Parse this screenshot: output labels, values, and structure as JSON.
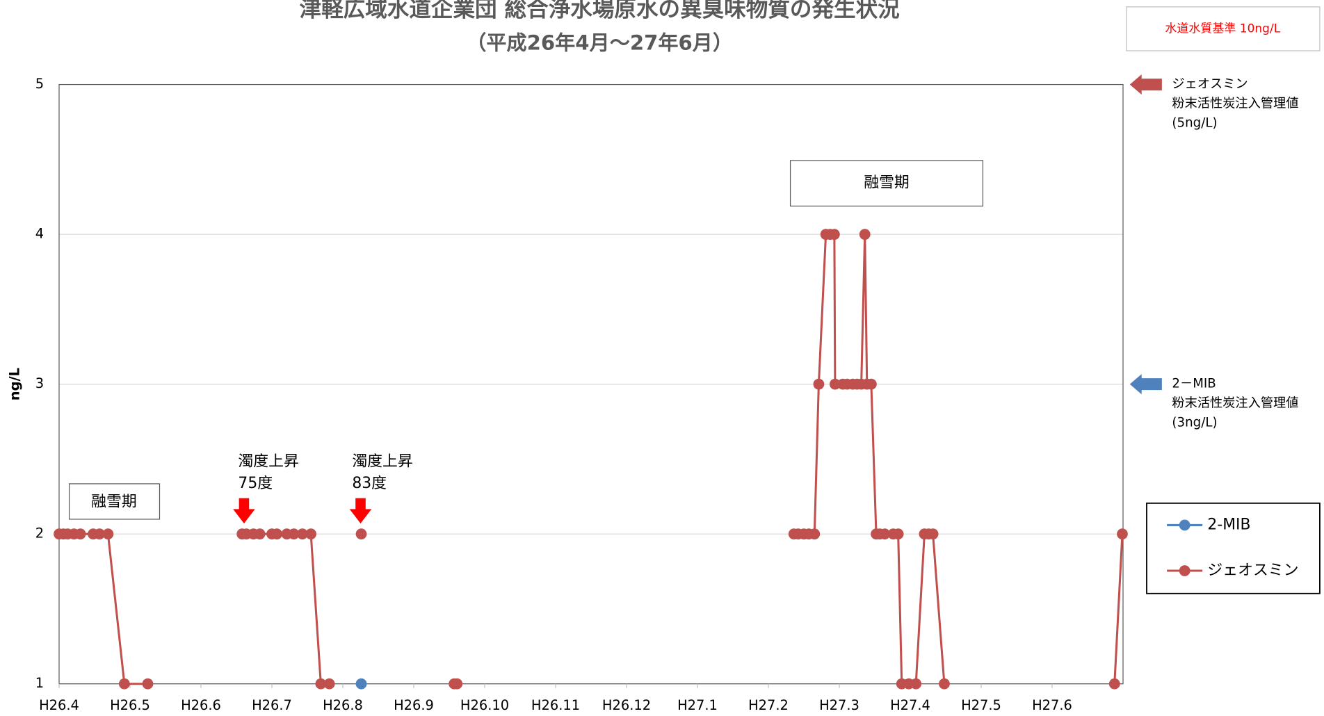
{
  "chart_data": {
    "type": "line",
    "title": "津軽広域水道企業団 総合浄水場原水の異臭味物質の発生状況",
    "subtitle": "（平成26年4月～27年6月）",
    "y_label": "ng/L",
    "xlim": [
      0,
      15
    ],
    "xticks": [
      {
        "value": 0,
        "label": "H26.4"
      },
      {
        "value": 1,
        "label": "H26.5"
      },
      {
        "value": 2,
        "label": "H26.6"
      },
      {
        "value": 3,
        "label": "H26.7"
      },
      {
        "value": 4,
        "label": "H26.8"
      },
      {
        "value": 5,
        "label": "H26.9"
      },
      {
        "value": 6,
        "label": "H26.10"
      },
      {
        "value": 7,
        "label": "H26.11"
      },
      {
        "value": 8,
        "label": "H26.12"
      },
      {
        "value": 9,
        "label": "H27.1"
      },
      {
        "value": 10,
        "label": "H27.2"
      },
      {
        "value": 11,
        "label": "H27.3"
      },
      {
        "value": 12,
        "label": "H27.4"
      },
      {
        "value": 13,
        "label": "H27.5"
      },
      {
        "value": 14,
        "label": "H27.6"
      }
    ],
    "ylim": [
      1,
      5
    ],
    "yticks": [
      1,
      2,
      3,
      4,
      5
    ],
    "grid": true,
    "series": [
      {
        "name": "2-MIB",
        "color": "#4f81bd",
        "x": [
          4.26
        ],
        "values": [
          1
        ]
      },
      {
        "name": "ジェオスミン",
        "color": "#c0504d",
        "x": [
          0,
          0.06,
          0.12,
          0.21,
          0.3,
          0.48,
          0.57,
          0.69,
          0.92,
          1.25,
          null,
          2.58,
          2.64,
          2.74,
          2.83,
          3.0,
          3.07,
          3.21,
          3.31,
          3.43,
          3.55,
          3.69,
          3.81,
          null,
          4.26,
          null,
          5.57,
          5.61,
          null,
          10.36,
          10.42,
          10.5,
          10.57,
          10.65,
          10.71,
          10.81,
          10.87,
          10.93,
          10.94,
          11.05,
          11.11,
          11.19,
          11.25,
          11.31,
          11.36,
          11.39,
          11.45,
          11.52,
          11.57,
          11.64,
          11.76,
          11.83,
          11.88,
          11.98,
          12.08,
          12.2,
          12.26,
          12.32,
          12.48,
          null,
          14.88,
          14.99
        ],
        "values": [
          2,
          2,
          2,
          2,
          2,
          2,
          2,
          2,
          1,
          1,
          null,
          2,
          2,
          2,
          2,
          2,
          2,
          2,
          2,
          2,
          2,
          1,
          1,
          null,
          2,
          null,
          1,
          1,
          null,
          2,
          2,
          2,
          2,
          2,
          3,
          4,
          4,
          4,
          3,
          3,
          3,
          3,
          3,
          3,
          4,
          3,
          3,
          2,
          2,
          2,
          2,
          2,
          1,
          1,
          1,
          2,
          2,
          2,
          1,
          null,
          1,
          2
        ]
      }
    ],
    "annotations": [
      {
        "lines": [
          "融雪期"
        ]
      },
      {
        "lines": [
          "融雪期"
        ]
      },
      {
        "lines": [
          "濁度上昇",
          "75度"
        ]
      },
      {
        "lines": [
          "濁度上昇",
          "83度"
        ]
      }
    ],
    "standard_note": "水道水質基準 10ng/L",
    "reference_levels": [
      {
        "value": 5,
        "color": "#c0504d",
        "lines": [
          "ジェオスミン",
          "粉末活性炭注入管理値",
          "(5ng/L)"
        ]
      },
      {
        "value": 3,
        "color": "#4f81bd",
        "lines": [
          "2－MIB",
          "粉末活性炭注入管理値",
          "(3ng/L)"
        ]
      }
    ]
  }
}
